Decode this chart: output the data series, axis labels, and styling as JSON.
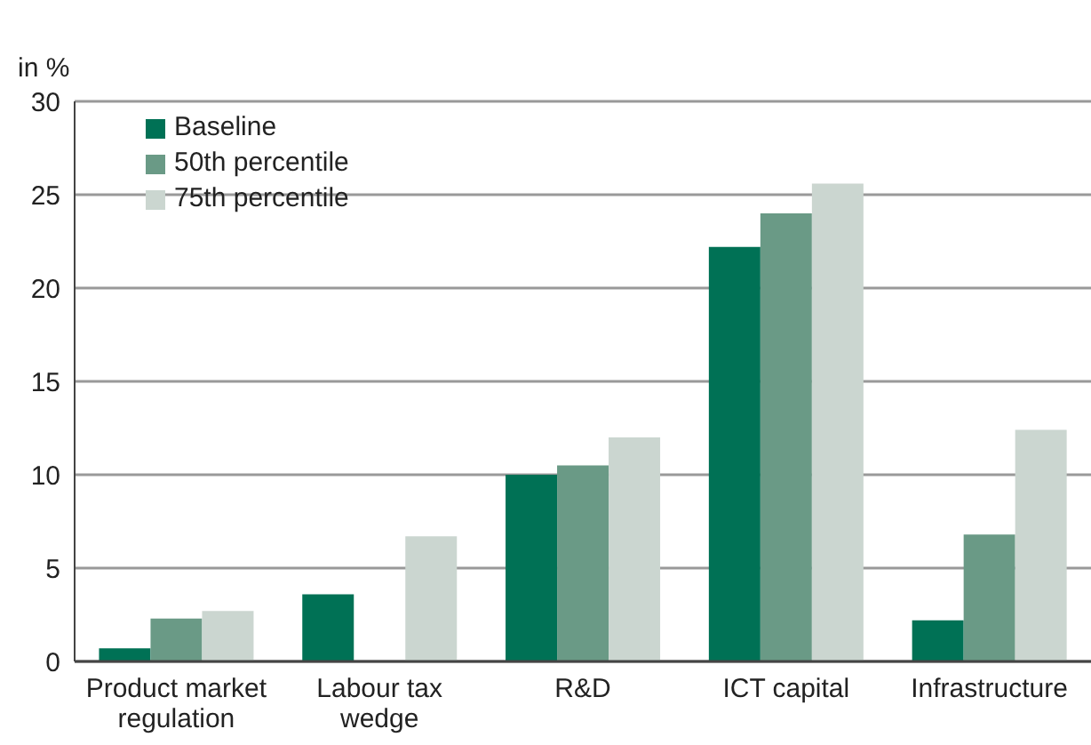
{
  "chart_data": {
    "type": "bar",
    "ylabel": "in %",
    "categories": [
      "Product market regulation",
      "Labour tax wedge",
      "R&D",
      "ICT capital",
      "Infrastructure"
    ],
    "series": [
      {
        "name": "Baseline",
        "color": "#007155",
        "values": [
          0.7,
          3.6,
          10,
          22.2,
          2.2
        ]
      },
      {
        "name": "50th percentile",
        "color": "#6a9a86",
        "values": [
          2.3,
          null,
          10.5,
          24,
          6.8
        ]
      },
      {
        "name": "75th percentile",
        "color": "#cbd6d0",
        "values": [
          2.7,
          6.7,
          12,
          25.6,
          12.4
        ]
      }
    ],
    "ylim": [
      0,
      30
    ],
    "yticks": [
      0,
      5,
      10,
      15,
      20,
      25,
      30
    ],
    "grid": "y",
    "legend": "top left"
  }
}
